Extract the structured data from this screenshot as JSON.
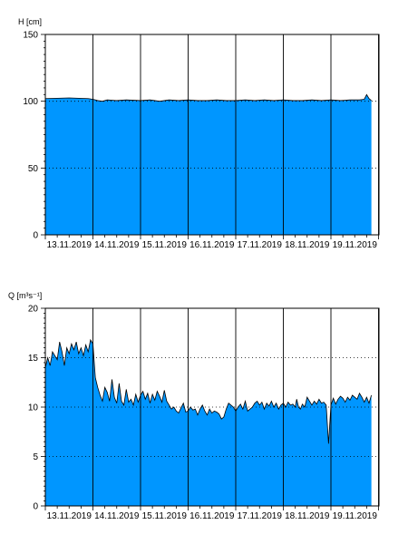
{
  "chart_data": [
    {
      "type": "area",
      "ylabel": "H [cm]",
      "ylim": [
        0,
        150
      ],
      "yticks": [
        0,
        50,
        100,
        150
      ],
      "xlim": [
        0,
        7.2
      ],
      "xticks": [
        "13.11.2019",
        "14.11.2019",
        "15.11.2019",
        "16.11.2019",
        "17.11.2019",
        "18.11.2019",
        "19.11.2019"
      ],
      "grid": "dotted horizontal at 50 and 100; solid vertical at day boundaries",
      "fill_color": "#0096ff",
      "series": [
        {
          "x": [
            0,
            0.5,
            0.9,
            1.0,
            1.1,
            1.2,
            1.3,
            1.5,
            1.7,
            2.0,
            2.2,
            2.4,
            2.6,
            2.8,
            3.0,
            3.2,
            3.4,
            3.6,
            3.8,
            4.0,
            4.2,
            4.4,
            4.6,
            4.8,
            5.0,
            5.2,
            5.4,
            5.6,
            5.8,
            6.0,
            6.2,
            6.4,
            6.6,
            6.7,
            6.75,
            6.8,
            6.85
          ],
          "values": [
            102,
            102.5,
            102,
            101.5,
            100.5,
            100,
            101,
            100.5,
            101,
            100.5,
            101,
            100,
            101,
            100.5,
            101,
            100.5,
            100.5,
            101,
            100.5,
            100.5,
            101,
            100.5,
            101,
            100.5,
            101,
            100.5,
            100.5,
            101,
            100.5,
            101,
            100.5,
            101,
            101,
            101.5,
            105,
            102,
            100.5
          ]
        }
      ]
    },
    {
      "type": "area",
      "ylabel": "Q [m³s⁻¹]",
      "ylim": [
        0,
        20
      ],
      "yticks": [
        0,
        5,
        10,
        15,
        20
      ],
      "xlim": [
        0,
        7.2
      ],
      "xticks": [
        "13.11.2019",
        "14.11.2019",
        "15.11.2019",
        "16.11.2019",
        "17.11.2019",
        "18.11.2019",
        "19.11.2019"
      ],
      "grid": "dotted horizontal at 5, 10 and 15; solid vertical at day boundaries",
      "fill_color": "#0096ff",
      "series": [
        {
          "x": [
            0,
            0.05,
            0.1,
            0.15,
            0.2,
            0.25,
            0.3,
            0.35,
            0.4,
            0.45,
            0.5,
            0.55,
            0.6,
            0.65,
            0.7,
            0.75,
            0.8,
            0.85,
            0.9,
            0.95,
            1.0,
            1.05,
            1.1,
            1.15,
            1.2,
            1.25,
            1.3,
            1.35,
            1.4,
            1.45,
            1.5,
            1.55,
            1.6,
            1.65,
            1.7,
            1.75,
            1.8,
            1.85,
            1.9,
            1.95,
            2.0,
            2.05,
            2.1,
            2.15,
            2.2,
            2.25,
            2.3,
            2.35,
            2.4,
            2.45,
            2.5,
            2.55,
            2.6,
            2.65,
            2.7,
            2.75,
            2.8,
            2.85,
            2.9,
            2.95,
            3.0,
            3.05,
            3.1,
            3.15,
            3.2,
            3.25,
            3.3,
            3.35,
            3.4,
            3.45,
            3.5,
            3.55,
            3.6,
            3.65,
            3.7,
            3.75,
            3.8,
            3.85,
            3.9,
            3.95,
            4.0,
            4.05,
            4.1,
            4.15,
            4.2,
            4.25,
            4.3,
            4.35,
            4.4,
            4.45,
            4.5,
            4.55,
            4.6,
            4.65,
            4.7,
            4.75,
            4.8,
            4.85,
            4.9,
            4.95,
            5.0,
            5.05,
            5.1,
            5.15,
            5.2,
            5.25,
            5.28,
            5.32,
            5.36,
            5.4,
            5.45,
            5.5,
            5.55,
            5.6,
            5.65,
            5.7,
            5.75,
            5.8,
            5.85,
            5.9,
            5.95,
            6.0,
            6.05,
            6.1,
            6.15,
            6.2,
            6.25,
            6.3,
            6.35,
            6.4,
            6.45,
            6.5,
            6.55,
            6.6,
            6.65,
            6.7,
            6.75,
            6.8,
            6.85
          ],
          "values": [
            14,
            15,
            14.2,
            15.6,
            15.2,
            14.8,
            16.6,
            15.6,
            14.2,
            16.0,
            15.4,
            16.4,
            15.8,
            16.6,
            15.4,
            16.0,
            15.2,
            16.3,
            15.6,
            16.8,
            16.4,
            13.0,
            12.0,
            11.2,
            10.6,
            12.0,
            11.5,
            10.6,
            12.8,
            11.0,
            10.4,
            12.4,
            10.6,
            10.2,
            11.8,
            10.5,
            10.8,
            10.2,
            11.3,
            10.5,
            11.2,
            11.6,
            10.8,
            11.4,
            10.4,
            11.3,
            10.7,
            11.6,
            11.1,
            10.5,
            11.7,
            10.6,
            10.2,
            9.8,
            10.0,
            9.6,
            9.4,
            9.9,
            10.4,
            9.5,
            9.6,
            10.0,
            9.7,
            9.8,
            9.2,
            9.8,
            10.2,
            9.6,
            9.2,
            9.8,
            9.4,
            9.6,
            9.5,
            9.3,
            8.8,
            9.0,
            9.8,
            10.4,
            10.2,
            10.0,
            9.6,
            10.0,
            10.3,
            9.8,
            10.6,
            9.6,
            9.8,
            10.0,
            10.4,
            10.6,
            10.2,
            10.5,
            9.8,
            10.4,
            10.1,
            10.6,
            10.0,
            10.4,
            9.8,
            10.2,
            10.4,
            10.0,
            10.5,
            10.2,
            10.3,
            10.0,
            10.8,
            10.0,
            9.8,
            10.3,
            10.0,
            11.0,
            10.6,
            10.2,
            10.6,
            10.3,
            10.8,
            10.4,
            10.5,
            10.2,
            6.3,
            10.2,
            10.9,
            10.3,
            10.8,
            11.1,
            10.9,
            10.5,
            11.0,
            10.7,
            11.2,
            11.0,
            10.8,
            11.4,
            11.0,
            10.5,
            11.0,
            10.4,
            11.2
          ]
        }
      ]
    }
  ]
}
